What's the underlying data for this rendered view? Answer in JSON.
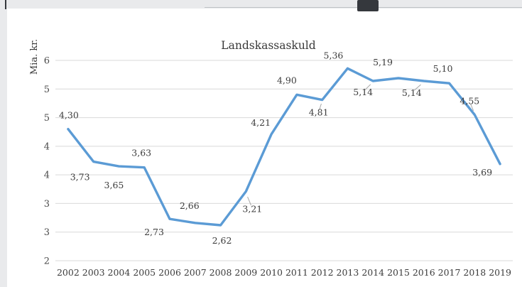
{
  "page": {
    "background": "#e9eaec",
    "panel_background": "#ffffff"
  },
  "top_bar": {
    "thumb_color": "#35383d",
    "line_color": "#bfc2c6"
  },
  "chart_data": {
    "type": "line",
    "title": "Landskassaskuld",
    "xlabel": "",
    "ylabel": "Mia. kr.",
    "categories": [
      "2002",
      "2003",
      "2004",
      "2005",
      "2006",
      "2007",
      "2008",
      "2009",
      "2010",
      "2011",
      "2012",
      "2013",
      "2014",
      "2015",
      "2016",
      "2017",
      "2018",
      "2019"
    ],
    "values": [
      4.3,
      3.73,
      3.65,
      3.63,
      2.73,
      2.66,
      2.62,
      3.21,
      4.21,
      4.9,
      4.81,
      5.36,
      5.14,
      5.19,
      5.14,
      5.1,
      4.55,
      3.69
    ],
    "point_labels": [
      "4,30",
      "3,73",
      "3,65",
      "3,63",
      "2,73",
      "2,66",
      "2,62",
      "3,21",
      "4,21",
      "4,90",
      "4,81",
      "5,36",
      "5,14",
      "5,19",
      "5,14",
      "5,10",
      "4,55",
      "3,69"
    ],
    "ylim": [
      2,
      5.5
    ],
    "ytick_step": 0.5,
    "ytick_labels_bottom_to_top": [
      "2",
      "3",
      "3",
      "4",
      "4",
      "5",
      "5",
      "6"
    ],
    "grid": true,
    "legend": "none",
    "line_color": "#5b9bd5",
    "grid_color": "#d9d9d9",
    "leader_color": "#a6a6a6",
    "label_color": "#3c3c3c",
    "label_offsets": [
      [
        1,
        -19,
        false
      ],
      [
        -19,
        22,
        false
      ],
      [
        -7,
        27,
        false
      ],
      [
        -4,
        -20,
        false
      ],
      [
        -22,
        19,
        false
      ],
      [
        -8,
        -24,
        false
      ],
      [
        2,
        22,
        false
      ],
      [
        9,
        25,
        true
      ],
      [
        -15,
        -16,
        false
      ],
      [
        -14,
        -20,
        false
      ],
      [
        -5,
        18,
        true
      ],
      [
        -20,
        -18,
        false
      ],
      [
        -14,
        16,
        true
      ],
      [
        -22,
        -22,
        false
      ],
      [
        -17,
        17,
        true
      ],
      [
        -9,
        -20,
        false
      ],
      [
        -7,
        -19,
        true
      ],
      [
        -25,
        12,
        false
      ]
    ]
  }
}
